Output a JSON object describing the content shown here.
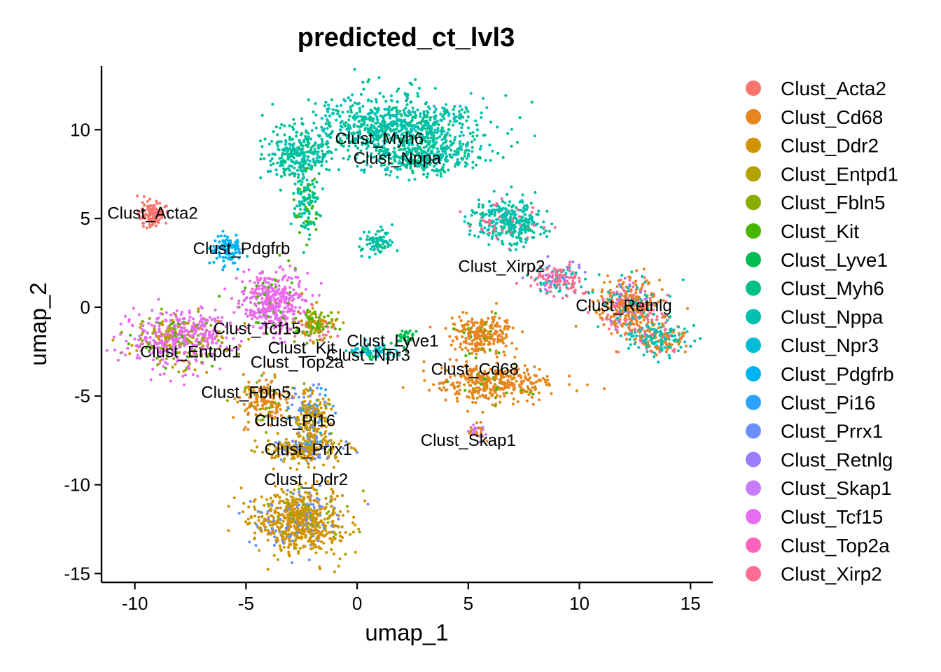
{
  "chart_data": {
    "type": "scatter",
    "title": "predicted_ct_lvl3",
    "xlabel": "umap_1",
    "ylabel": "umap_2",
    "xlim": [
      -11.5,
      16.0
    ],
    "ylim": [
      -15.5,
      13.6
    ],
    "xticks": [
      -10,
      -5,
      0,
      5,
      10,
      15
    ],
    "yticks": [
      -15,
      -10,
      -5,
      0,
      5,
      10
    ],
    "xtick_labels": [
      "-10",
      "-5",
      "0",
      "5",
      "10",
      "15"
    ],
    "ytick_labels": [
      "-15",
      "-10",
      "-5",
      "0",
      "5",
      "10"
    ],
    "grid": false,
    "legend_position": "right",
    "series": [
      {
        "name": "Clust_Acta2",
        "color": "#F8766D"
      },
      {
        "name": "Clust_Cd68",
        "color": "#E7851E"
      },
      {
        "name": "Clust_Ddr2",
        "color": "#D09400"
      },
      {
        "name": "Clust_Entpd1",
        "color": "#B2A100"
      },
      {
        "name": "Clust_Fbln5",
        "color": "#89AC00"
      },
      {
        "name": "Clust_Kit",
        "color": "#45B500"
      },
      {
        "name": "Clust_Lyve1",
        "color": "#00BC51"
      },
      {
        "name": "Clust_Myh6",
        "color": "#00C087"
      },
      {
        "name": "Clust_Nppa",
        "color": "#00C0B2"
      },
      {
        "name": "Clust_Npr3",
        "color": "#00BCD6"
      },
      {
        "name": "Clust_Pdgfrb",
        "color": "#00B3F2"
      },
      {
        "name": "Clust_Pi16",
        "color": "#29A3FF"
      },
      {
        "name": "Clust_Prrx1",
        "color": "#6B8EFF"
      },
      {
        "name": "Clust_Retnlg",
        "color": "#9C7DFF"
      },
      {
        "name": "Clust_Skap1",
        "color": "#C77CFF"
      },
      {
        "name": "Clust_Tcf15",
        "color": "#E76BF3"
      },
      {
        "name": "Clust_Top2a",
        "color": "#FF62BC"
      },
      {
        "name": "Clust_Xirp2",
        "color": "#FF6C91"
      }
    ],
    "cluster_labels": [
      {
        "text": "Clust_Myh6",
        "x": 1.0,
        "y": 9.5
      },
      {
        "text": "Clust_Nppa",
        "x": 1.8,
        "y": 8.4
      },
      {
        "text": "Clust_Acta2",
        "x": -9.2,
        "y": 5.3
      },
      {
        "text": "Clust_Pdgfrb",
        "x": -5.2,
        "y": 3.3
      },
      {
        "text": "Clust_Xirp2",
        "x": 6.5,
        "y": 2.3
      },
      {
        "text": "Clust_Retnlg",
        "x": 12.0,
        "y": 0.1
      },
      {
        "text": "Clust_Tcf15",
        "x": -4.5,
        "y": -1.2
      },
      {
        "text": "Clust_Kit",
        "x": -2.5,
        "y": -2.3
      },
      {
        "text": "Clust_Lyve1",
        "x": 1.6,
        "y": -1.9
      },
      {
        "text": "Clust_Entpd1",
        "x": -7.5,
        "y": -2.5
      },
      {
        "text": "Clust_Npr3",
        "x": 0.5,
        "y": -2.7
      },
      {
        "text": "Clust_Top2a",
        "x": -2.7,
        "y": -3.1
      },
      {
        "text": "Clust_Cd68",
        "x": 5.3,
        "y": -3.5
      },
      {
        "text": "Clust_Fbln5",
        "x": -5.0,
        "y": -4.8
      },
      {
        "text": "Clust_Pi16",
        "x": -2.8,
        "y": -6.4
      },
      {
        "text": "Clust_Prrx1",
        "x": -2.2,
        "y": -8.0
      },
      {
        "text": "Clust_Skap1",
        "x": 5.0,
        "y": -7.5
      },
      {
        "text": "Clust_Ddr2",
        "x": -2.3,
        "y": -9.7
      }
    ]
  }
}
